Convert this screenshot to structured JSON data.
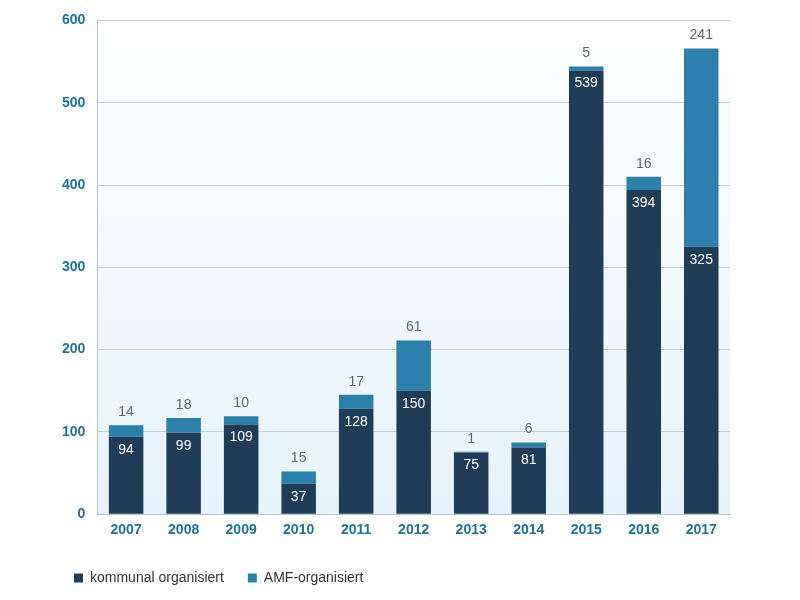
{
  "chart_data": {
    "type": "bar",
    "stacked": true,
    "categories": [
      "2007",
      "2008",
      "2009",
      "2010",
      "2011",
      "2012",
      "2013",
      "2014",
      "2015",
      "2016",
      "2017"
    ],
    "series": [
      {
        "name": "kommunal organisiert",
        "color": "#1f3c58",
        "values": [
          94,
          99,
          109,
          37,
          128,
          150,
          75,
          81,
          539,
          394,
          325
        ]
      },
      {
        "name": "AMF-organisiert",
        "color": "#2b80ac",
        "values": [
          14,
          18,
          10,
          15,
          17,
          61,
          1,
          6,
          5,
          16,
          241
        ]
      }
    ],
    "ylim": [
      0,
      600
    ],
    "yticks": [
      0,
      100,
      200,
      300,
      400,
      500,
      600
    ],
    "grid": true,
    "data_labels": true,
    "legend": "bottom"
  }
}
